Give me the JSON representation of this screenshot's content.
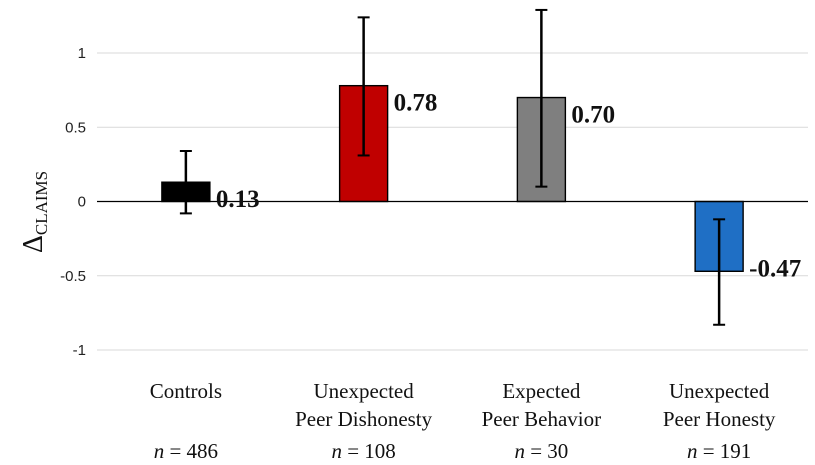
{
  "chart_data": {
    "type": "bar",
    "title": "",
    "ylabel_symbol": "Δ",
    "ylabel_subscript": "CLAIMS",
    "xlabel": "",
    "ylim": [
      -1,
      1.25
    ],
    "yticks": [
      1,
      0.5,
      0,
      -0.5,
      -1
    ],
    "ytick_labels": [
      "1",
      "0.5",
      "0",
      "-0.5",
      "-1"
    ],
    "grid": true,
    "categories": [
      {
        "line1": "Controls",
        "line2": "",
        "n_prefix": "n",
        "n_text": " = 486"
      },
      {
        "line1": "Unexpected",
        "line2": "Peer Dishonesty",
        "n_prefix": "n",
        "n_text": " = 108"
      },
      {
        "line1": "Expected",
        "line2": "Peer Behavior",
        "n_prefix": "n",
        "n_text": " = 30"
      },
      {
        "line1": "Unexpected",
        "line2": "Peer Honesty",
        "n_prefix": "n",
        "n_text": " = 191"
      }
    ],
    "values": [
      0.13,
      0.78,
      0.7,
      -0.47
    ],
    "data_labels": [
      "0.13",
      "0.78",
      "0.70",
      "-0.47"
    ],
    "error_low": [
      -0.08,
      0.31,
      0.1,
      -0.83
    ],
    "error_high": [
      0.34,
      1.24,
      1.29,
      -0.12
    ],
    "colors": [
      "#000000",
      "#c00000",
      "#7f7f7f",
      "#1f6fc5"
    ]
  }
}
